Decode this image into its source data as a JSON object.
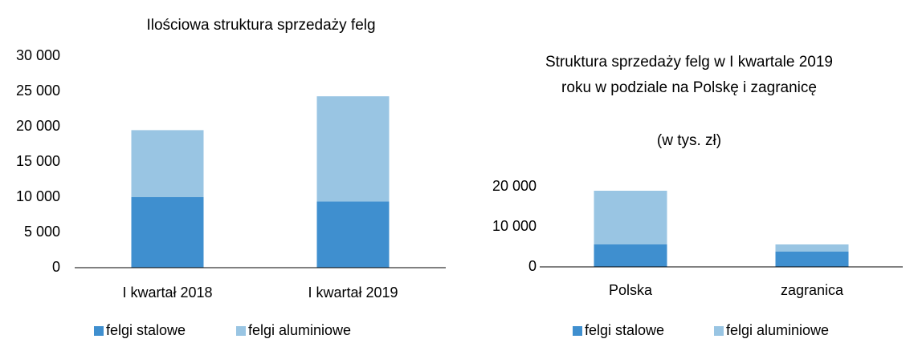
{
  "chart_data": [
    {
      "type": "stacked_bar",
      "title": "Ilościowa struktura sprzedaży felg",
      "categories": [
        "I kwartał 2018",
        "I kwartał 2019"
      ],
      "series": [
        {
          "name": "felgi stalowe",
          "color": "#3f8fcf",
          "values": [
            10000,
            9400
          ]
        },
        {
          "name": "felgi aluminiowe",
          "color": "#99c5e3",
          "values": [
            9500,
            14900
          ]
        }
      ],
      "ylim": [
        0,
        30000
      ],
      "yticks": [
        0,
        {
          "value": 5000,
          "label": "5 000"
        },
        {
          "value": 10000,
          "label": "10 000"
        },
        {
          "value": 15000,
          "label": "15 000"
        },
        {
          "value": 20000,
          "label": "20 000"
        },
        {
          "value": 25000,
          "label": "25 000"
        },
        {
          "value": 30000,
          "label": "30 000"
        }
      ],
      "legend": "bottom"
    },
    {
      "type": "stacked_bar",
      "title": "Struktura sprzedaży felg w I kwartale 2019 roku w podziale na Polskę i zagranicę",
      "subtitle": "(w tys. zł)",
      "categories": [
        "Polska",
        "zagranica"
      ],
      "series": [
        {
          "name": "felgi stalowe",
          "color": "#3f8fcf",
          "values": [
            5600,
            3800
          ]
        },
        {
          "name": "felgi aluminiowe",
          "color": "#99c5e3",
          "values": [
            13400,
            1800
          ]
        }
      ],
      "ylim": [
        0,
        20000
      ],
      "yticks": [
        0,
        {
          "value": 10000,
          "label": "10 000"
        },
        {
          "value": 20000,
          "label": "20 000"
        }
      ],
      "legend": "bottom"
    }
  ]
}
